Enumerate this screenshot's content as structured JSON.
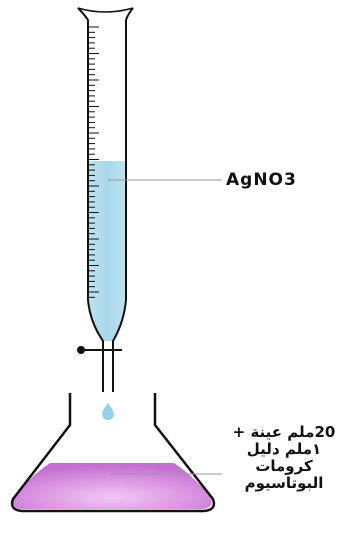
{
  "diagram": {
    "reagent_label": "AgNO3",
    "sample_lines": [
      "20ملم عينة +",
      "١ملم دليل",
      "كرومات",
      "البوتاسيوم"
    ],
    "colors": {
      "burette_solution": "#add8ea",
      "flask_solution": "#d98ee2",
      "outline": "#111111"
    }
  }
}
